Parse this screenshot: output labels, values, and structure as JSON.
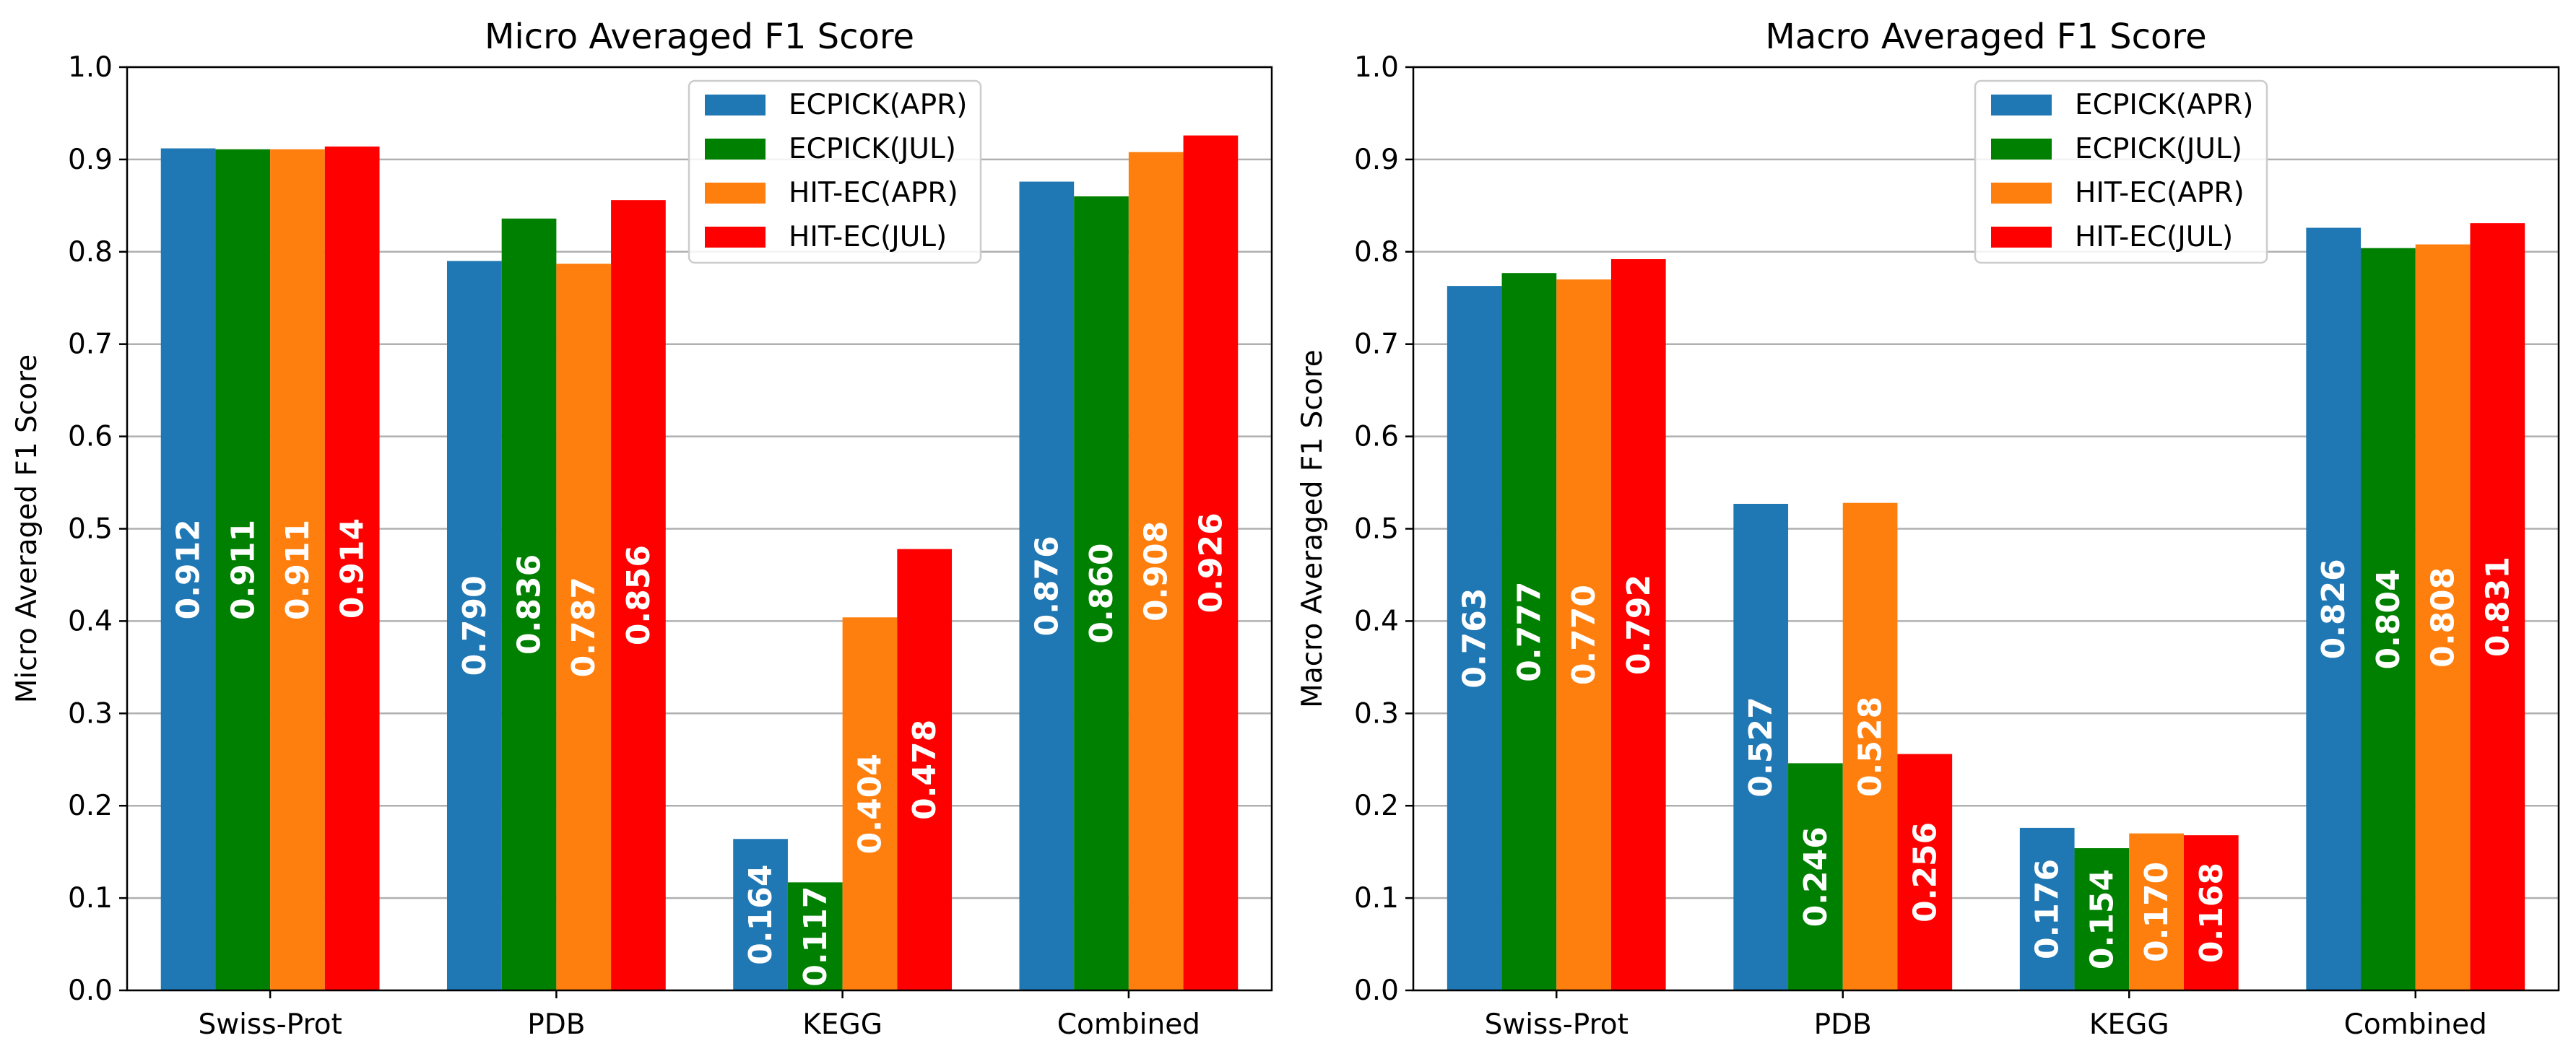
{
  "chart_data": [
    {
      "type": "bar",
      "title": "Micro Averaged F1 Score",
      "xlabel": "",
      "ylabel": "Micro Averaged F1 Score",
      "ylim": [
        0,
        1.0
      ],
      "yticks": [
        "0.0",
        "0.1",
        "0.2",
        "0.3",
        "0.4",
        "0.5",
        "0.6",
        "0.7",
        "0.8",
        "0.9",
        "1.0"
      ],
      "grid": "y",
      "legend_position": "top-center",
      "categories": [
        "Swiss-Prot",
        "PDB",
        "KEGG",
        "Combined"
      ],
      "series": [
        {
          "name": "ECPICK(APR)",
          "color": "#1f77b4",
          "values": [
            0.912,
            0.79,
            0.164,
            0.876
          ],
          "labels": [
            "0.912",
            "0.790",
            "0.164",
            "0.876"
          ]
        },
        {
          "name": "ECPICK(JUL)",
          "color": "#008000",
          "values": [
            0.911,
            0.836,
            0.117,
            0.86
          ],
          "labels": [
            "0.911",
            "0.836",
            "0.117",
            "0.860"
          ]
        },
        {
          "name": "HIT-EC(APR)",
          "color": "#ff7f0e",
          "values": [
            0.911,
            0.787,
            0.404,
            0.908
          ],
          "labels": [
            "0.911",
            "0.787",
            "0.404",
            "0.908"
          ]
        },
        {
          "name": "HIT-EC(JUL)",
          "color": "#ff0000",
          "values": [
            0.914,
            0.856,
            0.478,
            0.926
          ],
          "labels": [
            "0.914",
            "0.856",
            "0.478",
            "0.926"
          ]
        }
      ]
    },
    {
      "type": "bar",
      "title": "Macro Averaged F1 Score",
      "xlabel": "",
      "ylabel": "Macro Averaged F1 Score",
      "ylim": [
        0,
        1.0
      ],
      "yticks": [
        "0.0",
        "0.1",
        "0.2",
        "0.3",
        "0.4",
        "0.5",
        "0.6",
        "0.7",
        "0.8",
        "0.9",
        "1.0"
      ],
      "grid": "y",
      "legend_position": "top-center",
      "categories": [
        "Swiss-Prot",
        "PDB",
        "KEGG",
        "Combined"
      ],
      "series": [
        {
          "name": "ECPICK(APR)",
          "color": "#1f77b4",
          "values": [
            0.763,
            0.527,
            0.176,
            0.826
          ],
          "labels": [
            "0.763",
            "0.527",
            "0.176",
            "0.826"
          ]
        },
        {
          "name": "ECPICK(JUL)",
          "color": "#008000",
          "values": [
            0.777,
            0.246,
            0.154,
            0.804
          ],
          "labels": [
            "0.777",
            "0.246",
            "0.154",
            "0.804"
          ]
        },
        {
          "name": "HIT-EC(APR)",
          "color": "#ff7f0e",
          "values": [
            0.77,
            0.528,
            0.17,
            0.808
          ],
          "labels": [
            "0.770",
            "0.528",
            "0.170",
            "0.808"
          ]
        },
        {
          "name": "HIT-EC(JUL)",
          "color": "#ff0000",
          "values": [
            0.792,
            0.256,
            0.168,
            0.831
          ],
          "labels": [
            "0.792",
            "0.256",
            "0.168",
            "0.831"
          ]
        }
      ]
    }
  ]
}
